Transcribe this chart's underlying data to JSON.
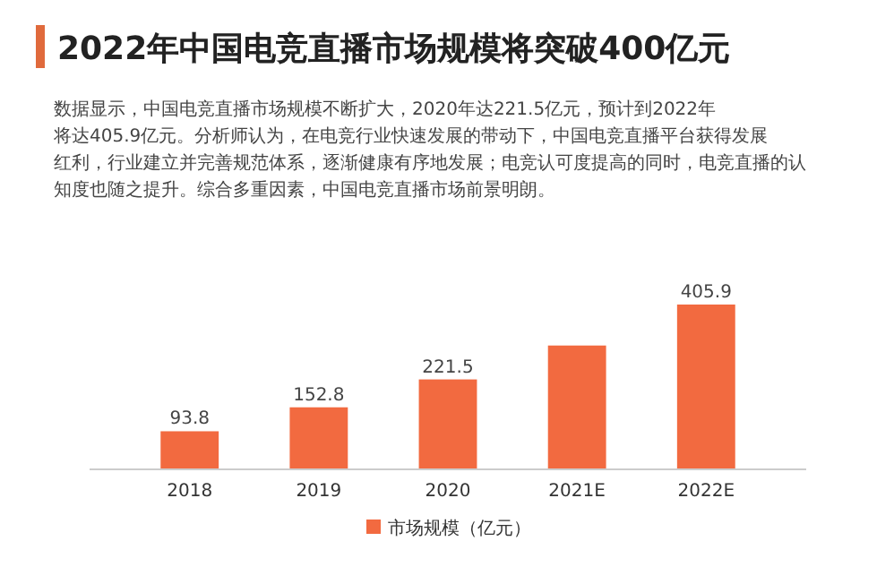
{
  "chart_data": {
    "type": "bar",
    "title": "2022年中国电竞直播市场规模将突破400亿元",
    "subtitle": "数据显示，中国电竞直播市场规模不断扩大，2020年达221.5亿元，预计到2022年将达405.9亿元。分析师认为，在电竞行业快速发展的带动下，中国电竞直播平台获得发展红利，行业建立并完善规范体系，逐渐健康有序地发展；电竞认可度提高的同时，电竞直播的认知度也随之提升。综合多重因素，中国电竞直播市场前景明朗。",
    "categories": [
      "2018",
      "2019",
      "2020",
      "2021E",
      "2022E"
    ],
    "series": [
      {
        "name": "市场规模（亿元）",
        "color": "#f26a40",
        "values": [
          93.8,
          152.8,
          221.5,
          305,
          405.9
        ],
        "value_labels": [
          "93.8",
          "152.8",
          "221.5",
          null,
          "405.9"
        ]
      }
    ],
    "legend": "bottom",
    "grid": false
  }
}
